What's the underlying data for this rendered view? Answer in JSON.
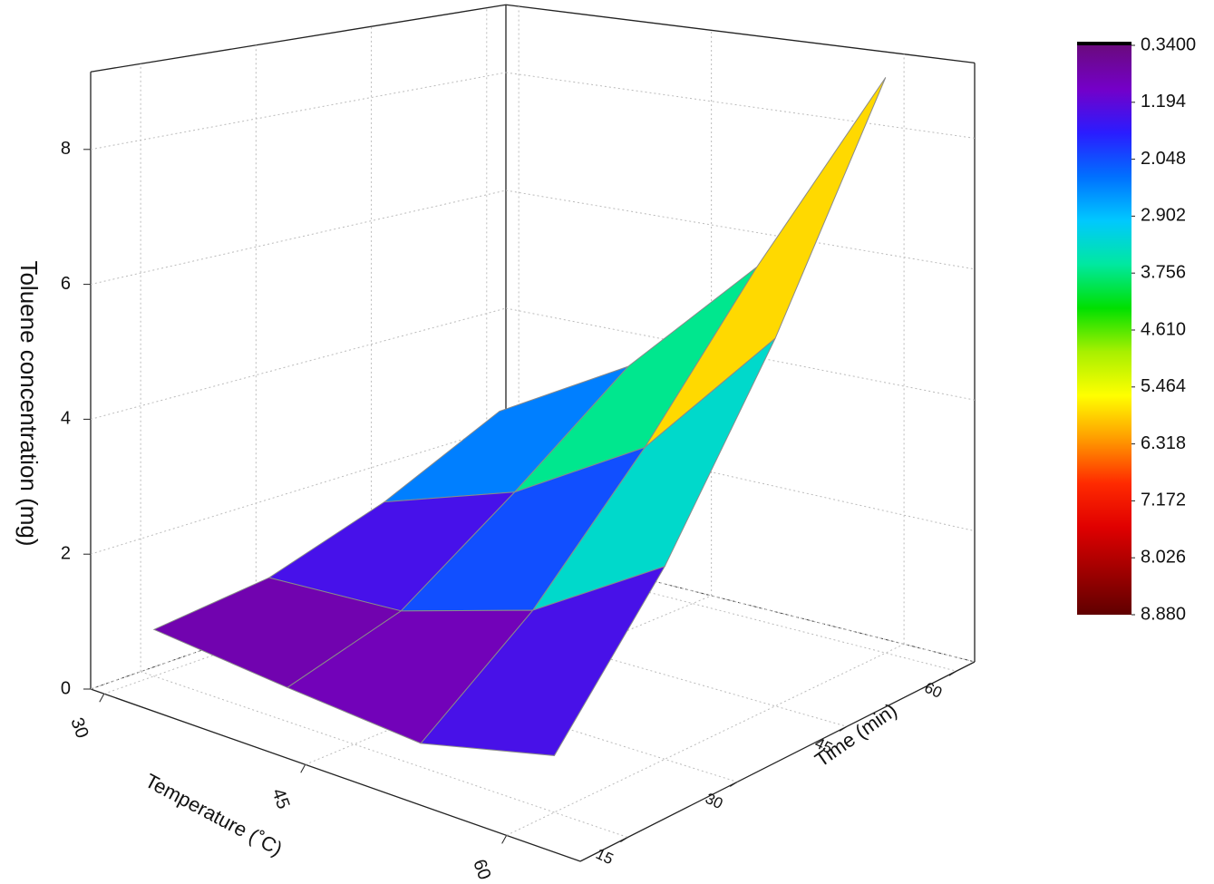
{
  "chart_data": {
    "type": "surface",
    "x_label": "Temperature (˚C)",
    "y_label": "Time (min)",
    "z_label": "Toluene concentration (mg)",
    "x": [
      30,
      40,
      50,
      60
    ],
    "y": [
      15,
      30,
      45,
      60
    ],
    "z": [
      [
        0.7,
        0.5,
        0.34,
        0.8
      ],
      [
        0.9,
        1.0,
        1.6,
        2.8
      ],
      [
        1.5,
        2.2,
        3.4,
        5.5
      ],
      [
        2.4,
        3.6,
        5.6,
        8.88
      ]
    ],
    "xlim": [
      29,
      65.5
    ],
    "xticks": [
      30,
      45,
      60
    ],
    "ylim": [
      8.5,
      62.5
    ],
    "yticks": [
      15,
      30,
      45,
      60
    ],
    "zlim": [
      0,
      9.15
    ],
    "zticks": [
      0,
      2,
      4,
      6,
      8
    ],
    "grid": true,
    "colormap": [
      "#6a0a7e",
      "#7400c8",
      "#2a1cff",
      "#0070ff",
      "#00c8ff",
      "#00e8a0",
      "#00e000",
      "#a8f000",
      "#ffff00",
      "#ff9a00",
      "#ff2a00",
      "#e00000",
      "#a00000",
      "#600000"
    ],
    "colorbar": {
      "lim": [
        0.34,
        8.88
      ],
      "ticks": [
        {
          "value": 0.34,
          "label": "0.3400"
        },
        1.194,
        2.048,
        2.902,
        3.756,
        {
          "value": 4.61,
          "label": "4.610"
        },
        5.464,
        6.318,
        7.172,
        8.026,
        {
          "value": 8.88,
          "label": "8.880"
        }
      ]
    }
  }
}
